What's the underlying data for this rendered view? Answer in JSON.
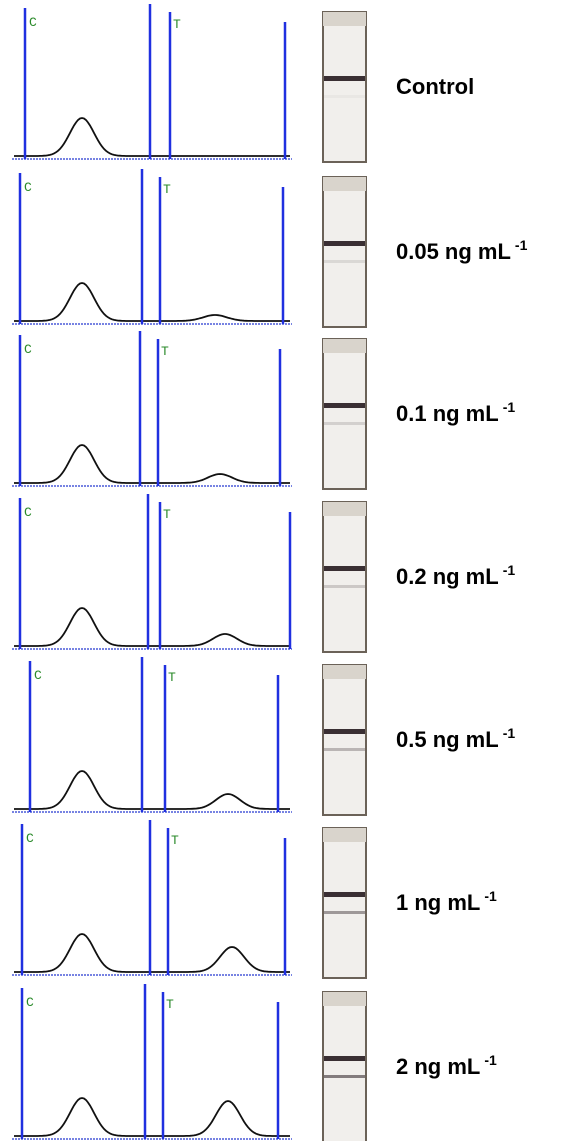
{
  "panels": [
    {
      "c_label": "C",
      "t_label": "T",
      "concentration": "Control"
    },
    {
      "c_label": "C",
      "t_label": "T",
      "concentration": "0.05 ng mL",
      "exponent": "-1"
    },
    {
      "c_label": "C",
      "t_label": "T",
      "concentration": "0.1 ng mL",
      "exponent": "-1"
    },
    {
      "c_label": "C",
      "t_label": "T",
      "concentration": "0.2 ng mL",
      "exponent": "-1"
    },
    {
      "c_label": "C",
      "t_label": "T",
      "concentration": "0.5 ng mL",
      "exponent": "-1"
    },
    {
      "c_label": "C",
      "t_label": "T",
      "concentration": "1 ng mL",
      "exponent": "-1"
    },
    {
      "c_label": "C",
      "t_label": "T",
      "concentration": "2 ng mL",
      "exponent": "-1"
    }
  ]
}
